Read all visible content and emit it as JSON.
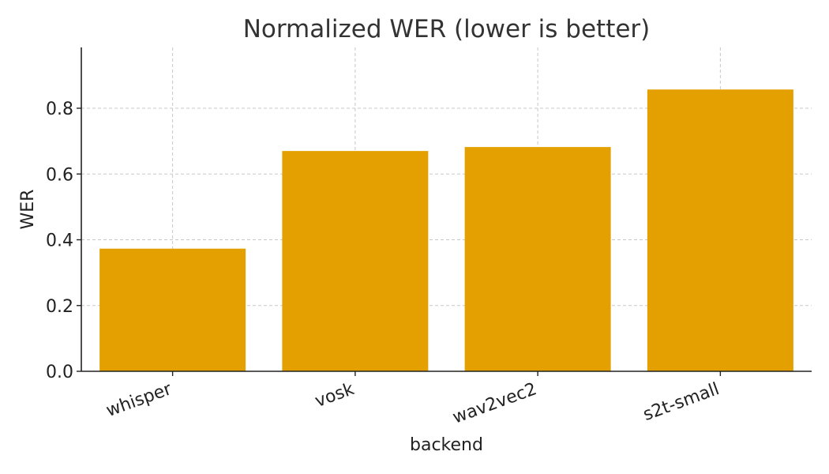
{
  "chart_data": {
    "type": "bar",
    "title": "Normalized WER (lower is better)",
    "xlabel": "backend",
    "ylabel": "WER",
    "categories": [
      "whisper",
      "vosk",
      "wav2vec2",
      "s2t-small"
    ],
    "values": [
      0.373,
      0.67,
      0.682,
      0.857
    ],
    "ylim": [
      0,
      0.985
    ],
    "yticks": [
      0.0,
      0.2,
      0.4,
      0.6,
      0.8
    ],
    "ytick_labels": [
      "0.0",
      "0.2",
      "0.4",
      "0.6",
      "0.8"
    ],
    "grid": true,
    "bar_color": "#E3A000"
  }
}
